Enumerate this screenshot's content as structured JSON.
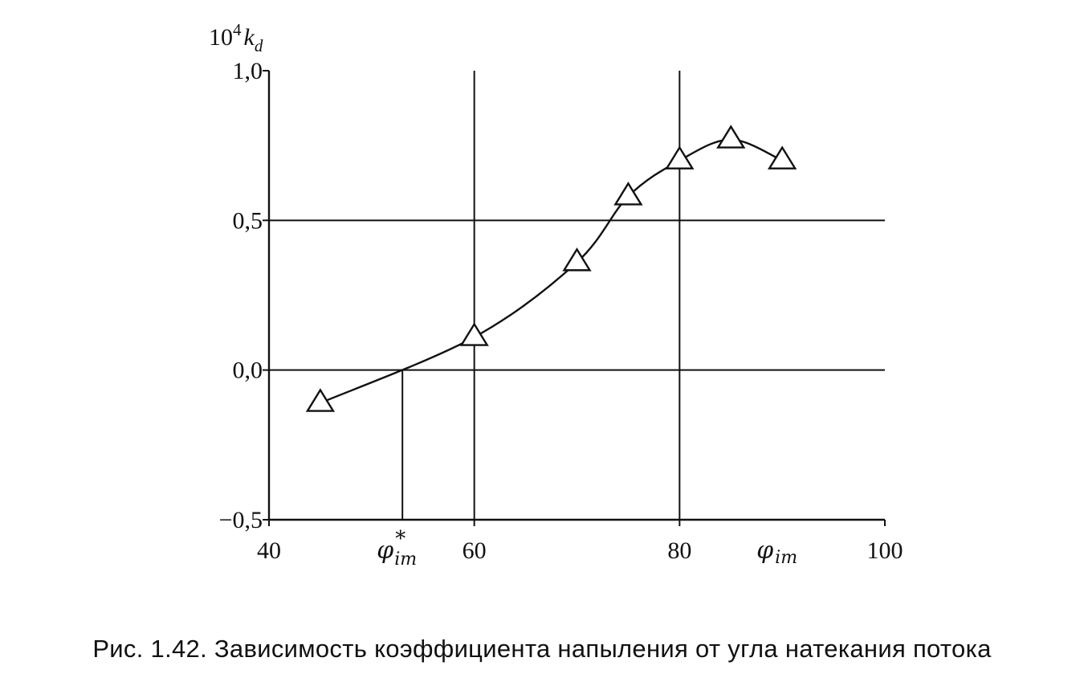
{
  "chart_data": {
    "type": "line",
    "ylabel": {
      "base": "10",
      "exp": "4",
      "var": "k",
      "sub": "d"
    },
    "xlim": [
      40,
      100
    ],
    "ylim": [
      -0.5,
      1.0
    ],
    "xticks": [
      40,
      60,
      80,
      100
    ],
    "yticks": [
      -0.5,
      0.0,
      0.5,
      1.0
    ],
    "xtick_labels": [
      "40",
      "60",
      "80",
      "100"
    ],
    "ytick_labels": [
      "−0,5",
      "0,0",
      "0,5",
      "1,0"
    ],
    "series": [
      {
        "marker": "triangle-open",
        "x": [
          45,
          60,
          70,
          75,
          80,
          85,
          90
        ],
        "y": [
          -0.11,
          0.11,
          0.36,
          0.58,
          0.7,
          0.77,
          0.7
        ]
      }
    ],
    "guide_lines_x": [
      53,
      60,
      80
    ],
    "guide_lines_y": [
      0.0,
      0.5
    ],
    "annotations": [
      {
        "name": "phi-im-star",
        "x": 53,
        "sym": "φ",
        "sub": "im",
        "sup": "*"
      },
      {
        "name": "phi-im",
        "x": 90,
        "sym": "φ",
        "sub": "im",
        "sup": ""
      }
    ],
    "colors": {
      "ink": "#111111",
      "background": "#ffffff"
    }
  },
  "caption": "Рис. 1.42. Зависимость коэффициента напыления от угла натекания потока"
}
